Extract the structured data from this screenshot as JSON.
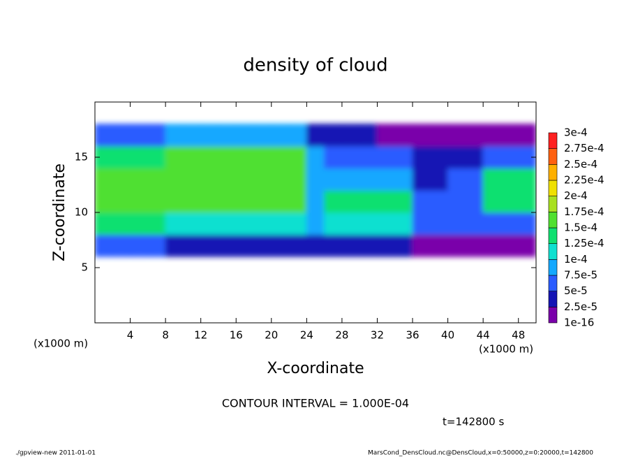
{
  "chart_data": {
    "type": "heatmap",
    "title": "density of cloud",
    "x_label": "X-coordinate",
    "y_label": "Z-coordinate",
    "x_unit": "(x1000 m)",
    "y_unit": "(x1000 m)",
    "contour_note": "CONTOUR INTERVAL = 1.000E-04",
    "time_note": "t=142800 s",
    "footer_left": "./gpview-new  2011-01-01",
    "footer_right": "MarsCond_DensCloud.nc@DensCloud,x=0:50000,z=0:20000,t=142800",
    "xlim": [
      0,
      50
    ],
    "ylim": [
      0,
      20
    ],
    "xticks": [
      4,
      8,
      12,
      16,
      20,
      24,
      28,
      32,
      36,
      40,
      44,
      48
    ],
    "yticks": [
      5,
      10,
      15
    ],
    "x": [
      1,
      3,
      5,
      7,
      9,
      11,
      13,
      15,
      17,
      19,
      21,
      23,
      25,
      27,
      29,
      31,
      33,
      35,
      37,
      39,
      41,
      43,
      45,
      47,
      49
    ],
    "y": [
      1,
      3,
      5,
      7,
      9,
      11,
      13,
      15,
      17,
      19
    ],
    "values": [
      [
        null,
        null,
        null,
        null,
        null,
        null,
        null,
        null,
        null,
        null,
        null,
        null,
        null,
        null,
        null,
        null,
        null,
        null,
        null,
        null,
        null,
        null,
        null,
        null,
        null
      ],
      [
        null,
        null,
        null,
        null,
        null,
        null,
        null,
        null,
        null,
        null,
        null,
        null,
        null,
        null,
        null,
        null,
        null,
        null,
        null,
        null,
        null,
        null,
        null,
        null,
        null
      ],
      [
        null,
        null,
        null,
        null,
        null,
        null,
        null,
        null,
        null,
        null,
        null,
        null,
        null,
        null,
        null,
        null,
        null,
        null,
        null,
        null,
        null,
        null,
        null,
        null,
        null
      ],
      [
        5e-05,
        5e-05,
        5e-05,
        5e-05,
        3e-05,
        3e-05,
        3e-05,
        3e-05,
        3e-05,
        3e-05,
        3e-05,
        3e-05,
        4e-05,
        4e-05,
        4e-05,
        4e-05,
        4e-05,
        4e-05,
        2e-05,
        2e-05,
        2e-05,
        2e-05,
        1e-05,
        1e-05,
        1e-05
      ],
      [
        0.00014,
        0.00014,
        0.00014,
        0.00014,
        0.00011,
        0.00011,
        0.00011,
        0.00011,
        0.00011,
        0.00011,
        0.00011,
        0.00011,
        8e-05,
        0.00011,
        0.00011,
        0.00011,
        0.00011,
        0.00011,
        5e-05,
        5e-05,
        5e-05,
        5e-05,
        6e-05,
        6e-05,
        6e-05
      ],
      [
        0.00015,
        0.00015,
        0.00015,
        0.00015,
        0.00015,
        0.00015,
        0.00015,
        0.00015,
        0.00015,
        0.00015,
        0.00015,
        0.00015,
        9e-05,
        0.00014,
        0.00014,
        0.00014,
        0.00014,
        0.00014,
        7e-05,
        7e-05,
        5e-05,
        5e-05,
        0.00013,
        0.00013,
        0.00013
      ],
      [
        0.00015,
        0.00015,
        0.00015,
        0.00015,
        0.00015,
        0.00015,
        0.00015,
        0.00015,
        0.00015,
        0.00015,
        0.00015,
        0.00015,
        9e-05,
        8e-05,
        8e-05,
        8e-05,
        8e-05,
        8e-05,
        4e-05,
        4e-05,
        6e-05,
        6e-05,
        0.00013,
        0.00013,
        0.00013
      ],
      [
        0.00013,
        0.00013,
        0.00013,
        0.00013,
        0.00015,
        0.00015,
        0.00015,
        0.00015,
        0.00015,
        0.00015,
        0.00015,
        0.00015,
        9e-05,
        7e-05,
        7e-05,
        7e-05,
        7e-05,
        7e-05,
        3e-05,
        3e-05,
        4e-05,
        4e-05,
        6e-05,
        6e-05,
        6e-05
      ],
      [
        6e-05,
        6e-05,
        6e-05,
        6e-05,
        9e-05,
        9e-05,
        9e-05,
        9e-05,
        9e-05,
        9e-05,
        9e-05,
        9e-05,
        3e-05,
        3e-05,
        3e-05,
        3e-05,
        1e-05,
        1e-05,
        1e-05,
        1e-05,
        2e-05,
        2e-05,
        1e-05,
        1e-05,
        1e-05
      ],
      [
        null,
        null,
        null,
        null,
        null,
        null,
        null,
        null,
        null,
        null,
        null,
        null,
        null,
        null,
        null,
        null,
        null,
        null,
        null,
        null,
        null,
        null,
        null,
        null,
        null
      ]
    ],
    "levels": [
      {
        "value": 1e-16,
        "label": "1e-16"
      },
      {
        "value": 2.5e-05,
        "label": "2.5e-5"
      },
      {
        "value": 5e-05,
        "label": "5e-5"
      },
      {
        "value": 7.5e-05,
        "label": "7.5e-5"
      },
      {
        "value": 0.0001,
        "label": "1e-4"
      },
      {
        "value": 0.000125,
        "label": "1.25e-4"
      },
      {
        "value": 0.00015,
        "label": "1.5e-4"
      },
      {
        "value": 0.000175,
        "label": "1.75e-4"
      },
      {
        "value": 0.0002,
        "label": "2e-4"
      },
      {
        "value": 0.000225,
        "label": "2.25e-4"
      },
      {
        "value": 0.00025,
        "label": "2.5e-4"
      },
      {
        "value": 0.000275,
        "label": "2.75e-4"
      },
      {
        "value": 0.0003,
        "label": "3e-4"
      }
    ],
    "colors": [
      "#7a00aa",
      "#1414b4",
      "#2a5cff",
      "#14a8ff",
      "#10e0d0",
      "#10e070",
      "#50e030",
      "#a8e020",
      "#f0e000",
      "#ffb000",
      "#ff6010",
      "#ff2020",
      "#ff9090"
    ]
  }
}
